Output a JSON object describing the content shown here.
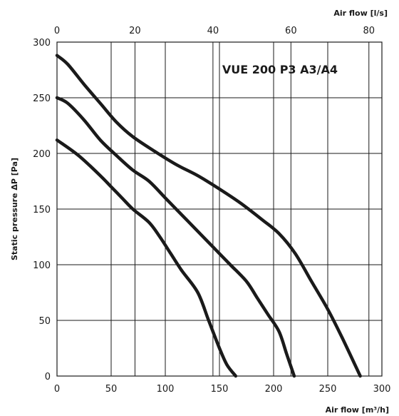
{
  "chart_data": {
    "type": "line",
    "title": "VUE 200 P3 A3/A4",
    "xlabel": "Air flow [m³/h]",
    "x2label": "Air flow [l/s]",
    "ylabel": "Static pressure ΔP [Pa]",
    "xlim": [
      0,
      300
    ],
    "ylim": [
      0,
      300
    ],
    "x2lim": [
      0,
      83.333
    ],
    "xticks": [
      0,
      50,
      100,
      150,
      200,
      250,
      300
    ],
    "x2ticks": [
      0,
      20,
      40,
      60,
      80
    ],
    "yticks": [
      0,
      50,
      100,
      150,
      200,
      250,
      300
    ],
    "grid": true,
    "series": [
      {
        "x": [
          0,
          20,
          40,
          50,
          60,
          70,
          85,
          95,
          105,
          115,
          130,
          140,
          150,
          157,
          165
        ],
        "y": [
          212,
          198,
          180,
          170,
          160,
          150,
          138,
          125,
          110,
          95,
          75,
          50,
          25,
          10,
          0
        ]
      },
      {
        "x": [
          0,
          10,
          25,
          40,
          55,
          70,
          85,
          100,
          115,
          130,
          145,
          160,
          175,
          185,
          195,
          205,
          212,
          219
        ],
        "y": [
          250,
          245,
          230,
          212,
          198,
          185,
          175,
          160,
          145,
          130,
          115,
          100,
          85,
          70,
          55,
          40,
          20,
          0
        ]
      },
      {
        "x": [
          0,
          10,
          25,
          40,
          55,
          70,
          90,
          110,
          130,
          150,
          170,
          190,
          205,
          220,
          235,
          250,
          263,
          280
        ],
        "y": [
          288,
          280,
          262,
          245,
          228,
          215,
          202,
          190,
          180,
          168,
          155,
          140,
          128,
          110,
          85,
          60,
          35,
          0
        ]
      }
    ]
  }
}
